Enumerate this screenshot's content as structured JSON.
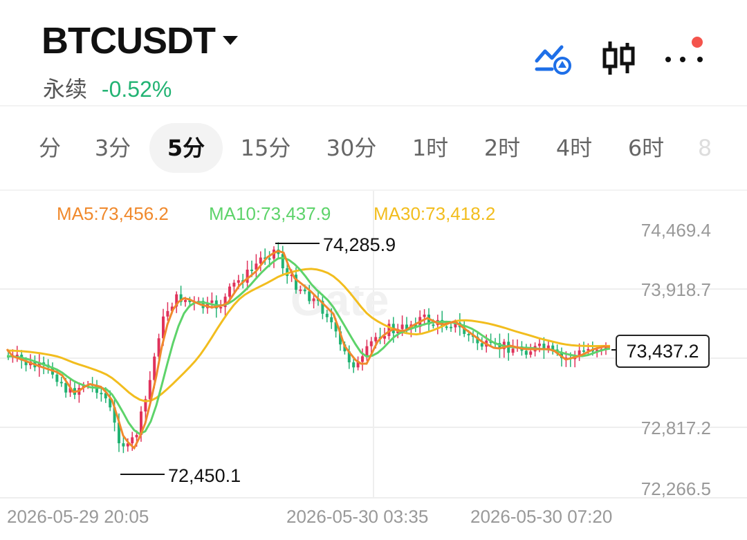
{
  "header": {
    "symbol": "BTCUSDT",
    "contract_type": "永续",
    "change_pct": "-0.52%",
    "icons": [
      "indicator-alert-icon",
      "candlestick-icon",
      "more-icon"
    ]
  },
  "tabs": [
    {
      "label": "分",
      "active": false
    },
    {
      "label": "3分",
      "active": false
    },
    {
      "label": "5分",
      "active": true
    },
    {
      "label": "15分",
      "active": false
    },
    {
      "label": "30分",
      "active": false
    },
    {
      "label": "1时",
      "active": false
    },
    {
      "label": "2时",
      "active": false
    },
    {
      "label": "4时",
      "active": false
    },
    {
      "label": "6时",
      "active": false
    },
    {
      "label": "8",
      "active": false
    }
  ],
  "ma_legend": {
    "ma5": "MA5:73,456.2",
    "ma10": "MA10:73,437.9",
    "ma30": "MA30:73,418.2"
  },
  "price_axis": [
    "74,469.4",
    "73,918.7",
    "72,817.2",
    "72,266.5"
  ],
  "time_axis": [
    "2026-05-29 20:05",
    "2026-05-30 03:35",
    "2026-05-30 07:20"
  ],
  "current_price": "73,437.2",
  "high_label": "74,285.9",
  "low_label": "72,450.1",
  "colors": {
    "up": "#e0325b",
    "down": "#22b373",
    "ma5": "#f0892c",
    "ma10": "#5dd36a",
    "ma30": "#f2bd1e",
    "accent": "#1e6fe8",
    "badge": "#f4544c"
  }
}
